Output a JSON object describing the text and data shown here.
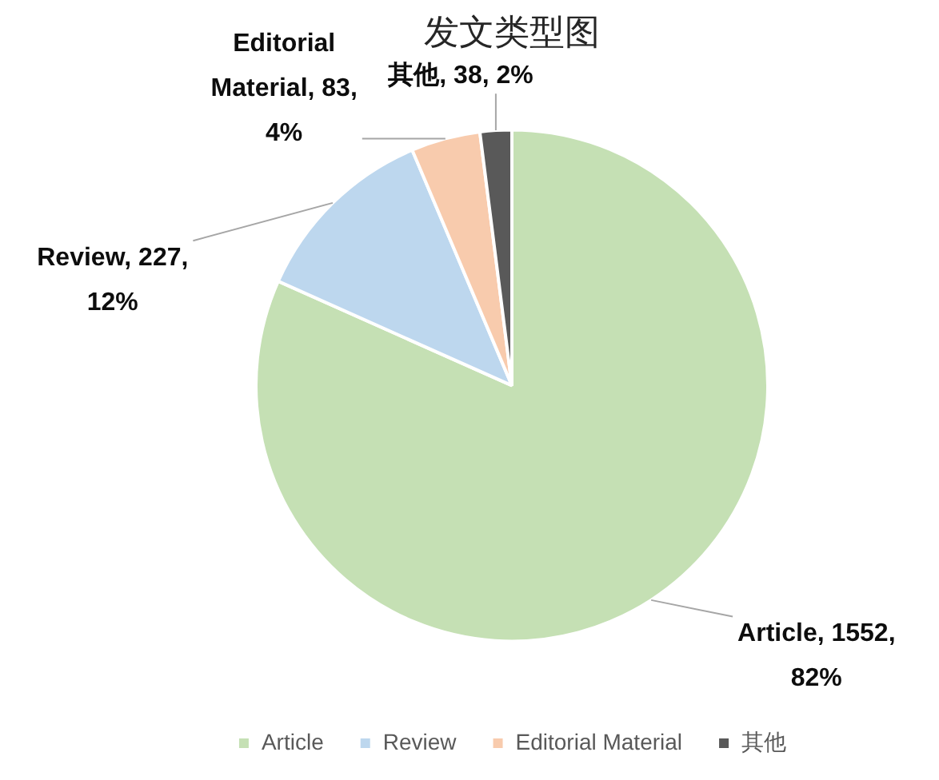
{
  "chart_data": {
    "type": "pie",
    "title": "发文类型图",
    "categories": [
      "Article",
      "Review",
      "Editorial Material",
      "其他"
    ],
    "values": [
      1552,
      227,
      83,
      38
    ],
    "colors": [
      "#c5e0b4",
      "#bdd7ee",
      "#f8cbad",
      "#595959"
    ],
    "value_labels": [
      "Article, 1552, 82%",
      "Review, 227, 12%",
      "Editorial Material, 83, 4%",
      "其他, 38, 2%"
    ],
    "legend": "bottom"
  }
}
